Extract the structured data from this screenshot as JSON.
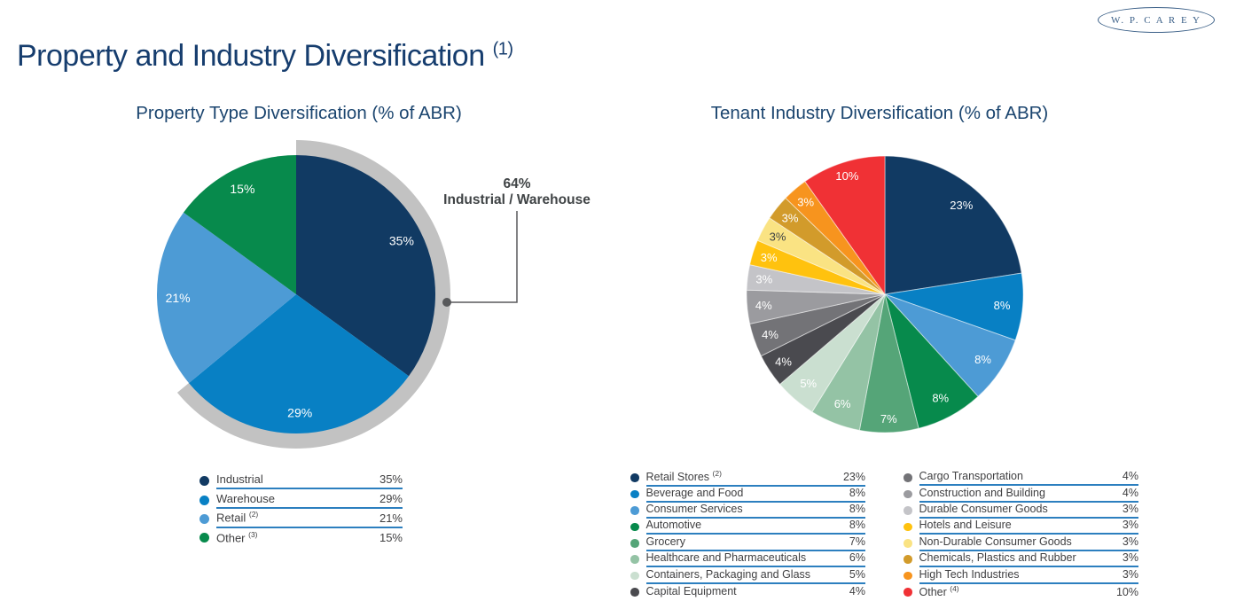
{
  "logo": {
    "text": "W. P. C A R E Y"
  },
  "page_title": {
    "text": "Property and Industry Diversification",
    "superscript": "(1)"
  },
  "theme": {
    "title_navy": "#163D6E",
    "subtitle_navy": "#1B456F",
    "legend_text": "#404042",
    "legend_rule_blue": "#2C7FBF",
    "callout_text": "#3F4345",
    "leader_line": "#58595B",
    "highlight_arc_gray": "#C2C2C2"
  },
  "chart_data": [
    {
      "type": "pie",
      "title": "Property Type Diversification (% of ABR)",
      "start_angle_deg": 0,
      "direction": "clockwise",
      "legend_position": "below",
      "slices": [
        {
          "label": "Industrial",
          "value": 35,
          "display": "35%",
          "color": "#113A63"
        },
        {
          "label": "Warehouse",
          "value": 29,
          "display": "29%",
          "color": "#0880C4"
        },
        {
          "label": "Retail",
          "value": 21,
          "display": "21%",
          "color": "#4D9BD5",
          "footnote": "(2)"
        },
        {
          "label": "Other",
          "value": 15,
          "display": "15%",
          "color": "#078A4C",
          "footnote": "(3)"
        }
      ],
      "callout": {
        "pct_text": "64%",
        "label": "Industrial / Warehouse",
        "covers_pct": 64,
        "arc_color": "#C2C2C2"
      }
    },
    {
      "type": "pie",
      "title": "Tenant Industry Diversification (% of ABR)",
      "start_angle_deg": 0,
      "direction": "clockwise",
      "legend_position": "below-two-columns",
      "slices": [
        {
          "label": "Retail Stores",
          "value": 23,
          "display": "23%",
          "color": "#113A63",
          "footnote": "(2)"
        },
        {
          "label": "Beverage and Food",
          "value": 8,
          "display": "8%",
          "color": "#0880C4"
        },
        {
          "label": "Consumer Services",
          "value": 8,
          "display": "8%",
          "color": "#4D9BD5"
        },
        {
          "label": "Automotive",
          "value": 8,
          "display": "8%",
          "color": "#078A4C"
        },
        {
          "label": "Grocery",
          "value": 7,
          "display": "7%",
          "color": "#55A578",
          "label_r": 0.9
        },
        {
          "label": "Healthcare and Pharmaceuticals",
          "value": 6,
          "display": "6%",
          "color": "#94C3A5"
        },
        {
          "label": "Containers, Packaging and Glass",
          "value": 5,
          "display": "5%",
          "color": "#CADFD0"
        },
        {
          "label": "Capital Equipment",
          "value": 4,
          "display": "4%",
          "color": "#4A4A4F"
        },
        {
          "label": "Cargo Transportation",
          "value": 4,
          "display": "4%",
          "color": "#737377"
        },
        {
          "label": "Construction and Building",
          "value": 4,
          "display": "4%",
          "color": "#9B9B9F"
        },
        {
          "label": "Durable Consumer Goods",
          "value": 3,
          "display": "3%",
          "color": "#C4C4C8"
        },
        {
          "label": "Hotels and Leisure",
          "value": 3,
          "display": "3%",
          "color": "#FFC20E"
        },
        {
          "label": "Non-Durable Consumer Goods",
          "value": 3,
          "display": "3%",
          "color": "#FAE383",
          "label_color": "#3F4345"
        },
        {
          "label": "Chemicals, Plastics and Rubber",
          "value": 3,
          "display": "3%",
          "color": "#D29B2B"
        },
        {
          "label": "High Tech Industries",
          "value": 3,
          "display": "3%",
          "color": "#F7941E"
        },
        {
          "label": "Other",
          "value": 10,
          "display": "10%",
          "color": "#F03135",
          "footnote": "(4)",
          "label_r": 0.9
        }
      ]
    }
  ]
}
